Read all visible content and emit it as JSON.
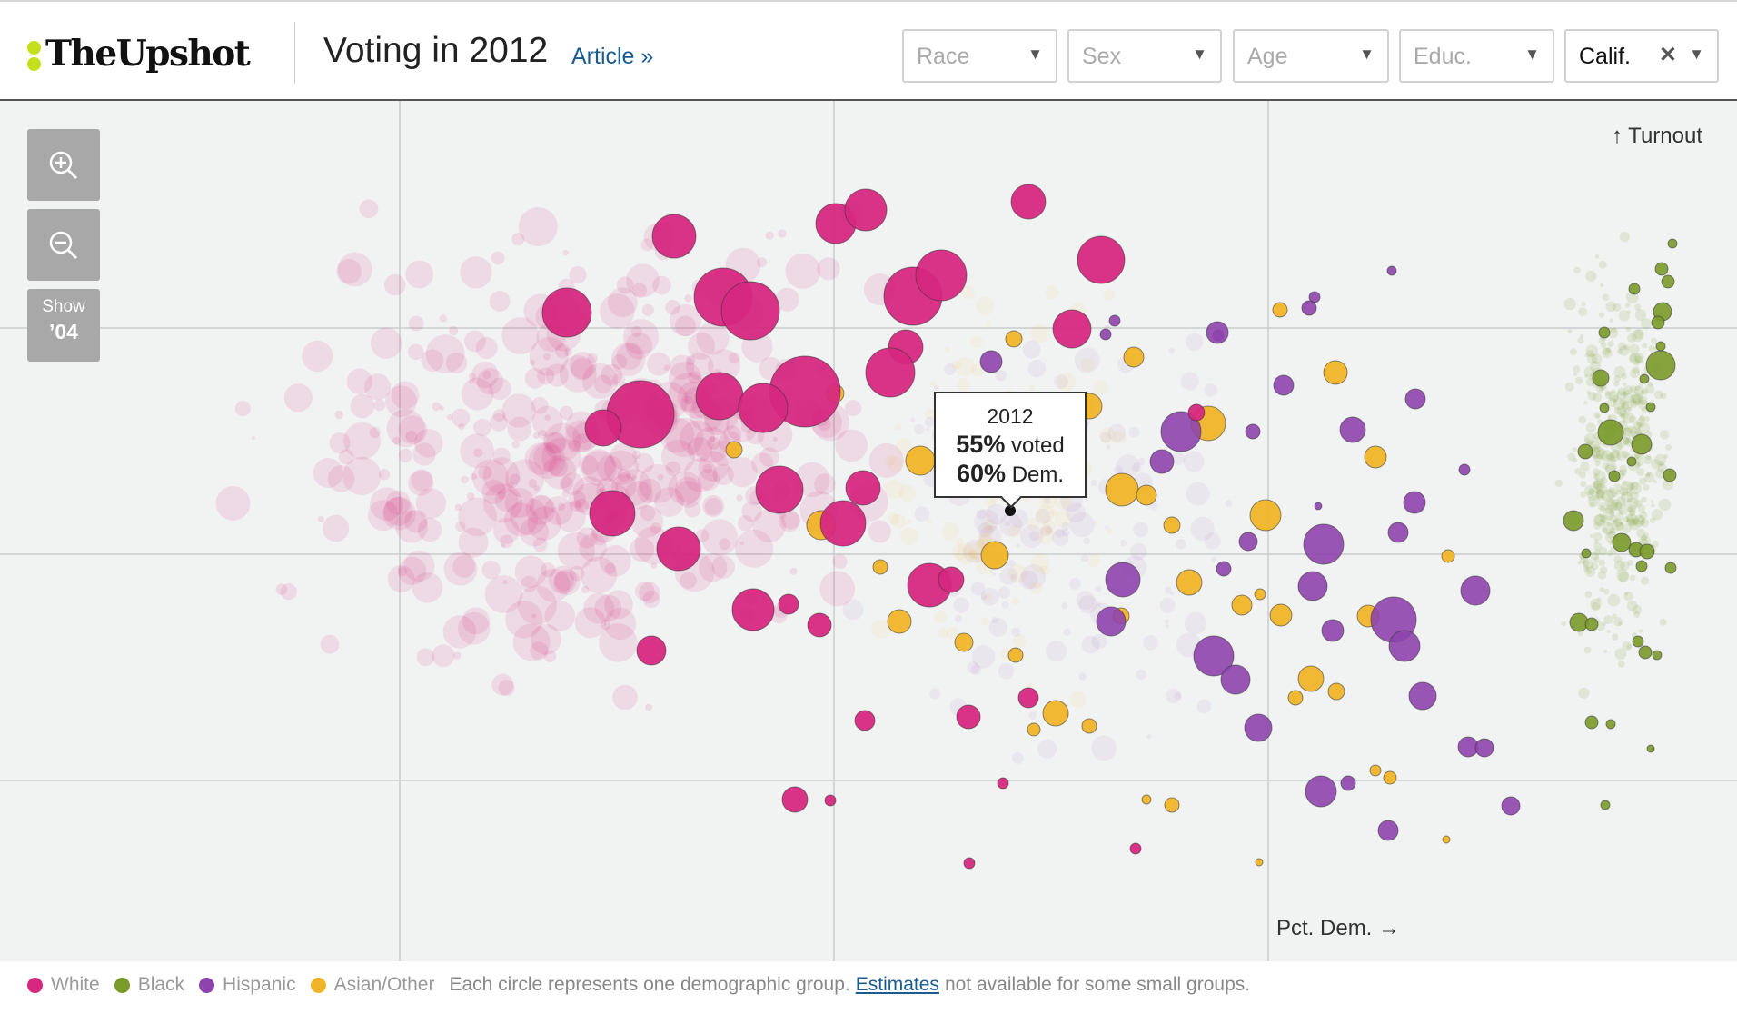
{
  "header": {
    "logo_text": "TheUpshot",
    "title": "Voting in 2012",
    "article_link": "Article »"
  },
  "filters": [
    {
      "label": "Race",
      "active": false
    },
    {
      "label": "Sex",
      "active": false
    },
    {
      "label": "Age",
      "active": false
    },
    {
      "label": "Educ.",
      "active": false
    },
    {
      "label": "Calif.",
      "active": true
    }
  ],
  "controls": {
    "zoom_in_icon": "zoom-in-icon",
    "zoom_out_icon": "zoom-out-icon",
    "show_line1": "Show",
    "show_line2": "’04"
  },
  "axes": {
    "turnout_label": "↑ Turnout",
    "pct_dem_label": "Pct. Dem. →"
  },
  "tooltip": {
    "year": "2012",
    "voted_value": "55%",
    "voted_label": "voted",
    "dem_value": "60%",
    "dem_label": "Dem."
  },
  "legend": {
    "items": [
      {
        "label": "White",
        "color": "#d6287f"
      },
      {
        "label": "Black",
        "color": "#7a9a2a"
      },
      {
        "label": "Hispanic",
        "color": "#8e44ad"
      },
      {
        "label": "Asian/Other",
        "color": "#f0b429"
      }
    ],
    "note_before": "Each circle represents one demographic group.",
    "link": "Estimates",
    "note_after": "not available for some small groups."
  },
  "colors": {
    "white": "#d6287f",
    "black": "#7a9a2a",
    "hispanic": "#8e44ad",
    "asian": "#f0b429"
  }
}
